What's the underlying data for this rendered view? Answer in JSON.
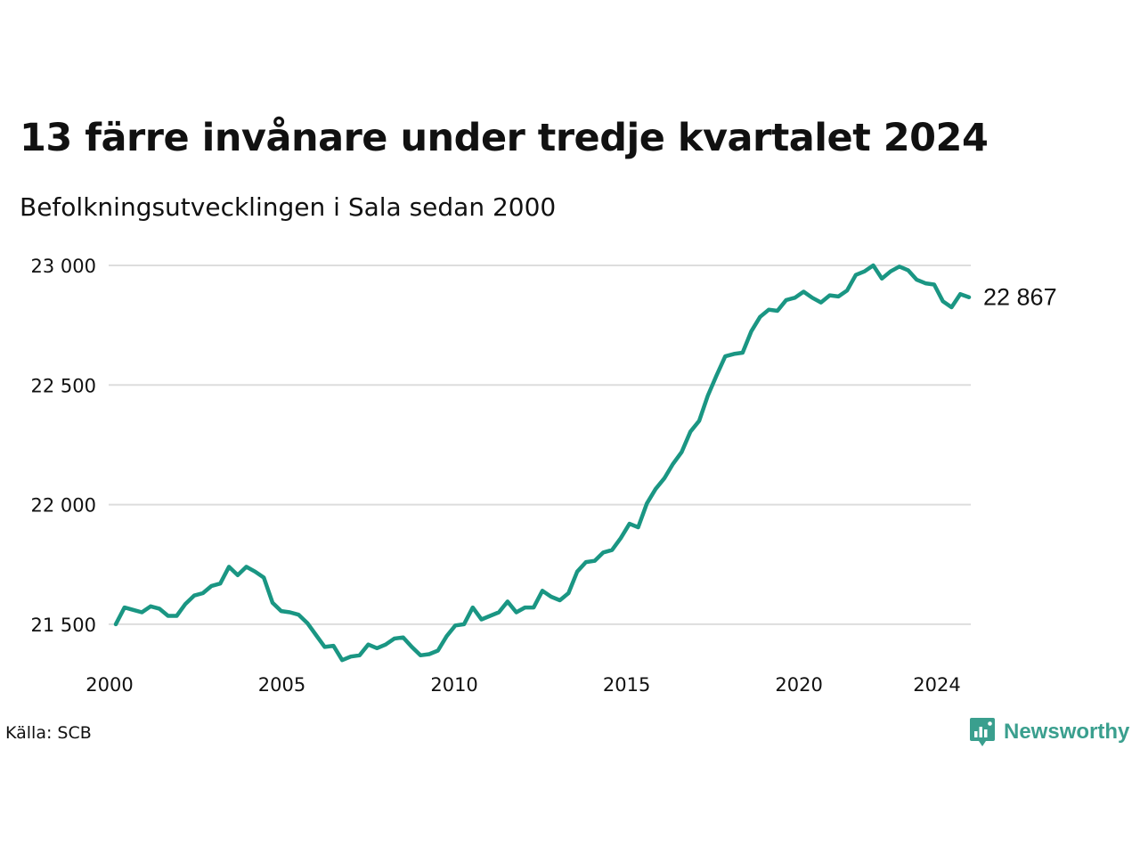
{
  "header": {
    "title": "13 färre invånare under tredje kvartalet 2024",
    "subtitle": "Befolkningsutvecklingen i Sala sedan 2000"
  },
  "footer": {
    "source": "Källa: SCB",
    "brand": "Newsworthy"
  },
  "colors": {
    "line": "#1a9683",
    "grid": "#dddddd",
    "brand": "#3a9f8e"
  },
  "chart_data": {
    "type": "line",
    "title": "13 färre invånare under tredje kvartalet 2024",
    "subtitle": "Befolkningsutvecklingen i Sala sedan 2000",
    "xlabel": "",
    "ylabel": "",
    "ylim": [
      21280,
      23000
    ],
    "xlim": [
      2000.0,
      2024.75
    ],
    "grid": "horizontal",
    "yticks": [
      21500,
      22000,
      22500,
      23000
    ],
    "ytick_labels": [
      "21 500",
      "22 000",
      "22 500",
      "23 000"
    ],
    "xticks": [
      2000,
      2005,
      2010,
      2015,
      2020,
      2024
    ],
    "xtick_labels": [
      "2000",
      "2005",
      "2010",
      "2015",
      "2020",
      "2024"
    ],
    "end_label": "22 867",
    "series": [
      {
        "values": [
          21500,
          21570,
          21560,
          21550,
          21575,
          21565,
          21535,
          21535,
          21585,
          21620,
          21630,
          21660,
          21670,
          21740,
          21705,
          21740,
          21720,
          21695,
          21590,
          21555,
          21550,
          21540,
          21505,
          21455,
          21405,
          21410,
          21350,
          21365,
          21370,
          21415,
          21400,
          21415,
          21440,
          21445,
          21405,
          21370,
          21375,
          21390,
          21450,
          21495,
          21500,
          21570,
          21520,
          21535,
          21550,
          21595,
          21550,
          21570,
          21570,
          21640,
          21615,
          21600,
          21630,
          21720,
          21760,
          21765,
          21800,
          21810,
          21860,
          21920,
          21905,
          22005,
          22065,
          22110,
          22170,
          22220,
          22305,
          22350,
          22455,
          22540,
          22620,
          22630,
          22635,
          22725,
          22785,
          22815,
          22810,
          22855,
          22865,
          22890,
          22865,
          22845,
          22875,
          22870,
          22895,
          22960,
          22975,
          23000,
          22945,
          22975,
          22995,
          22980,
          22940,
          22925,
          22920,
          22850,
          22825,
          22880,
          22867
        ]
      }
    ]
  }
}
